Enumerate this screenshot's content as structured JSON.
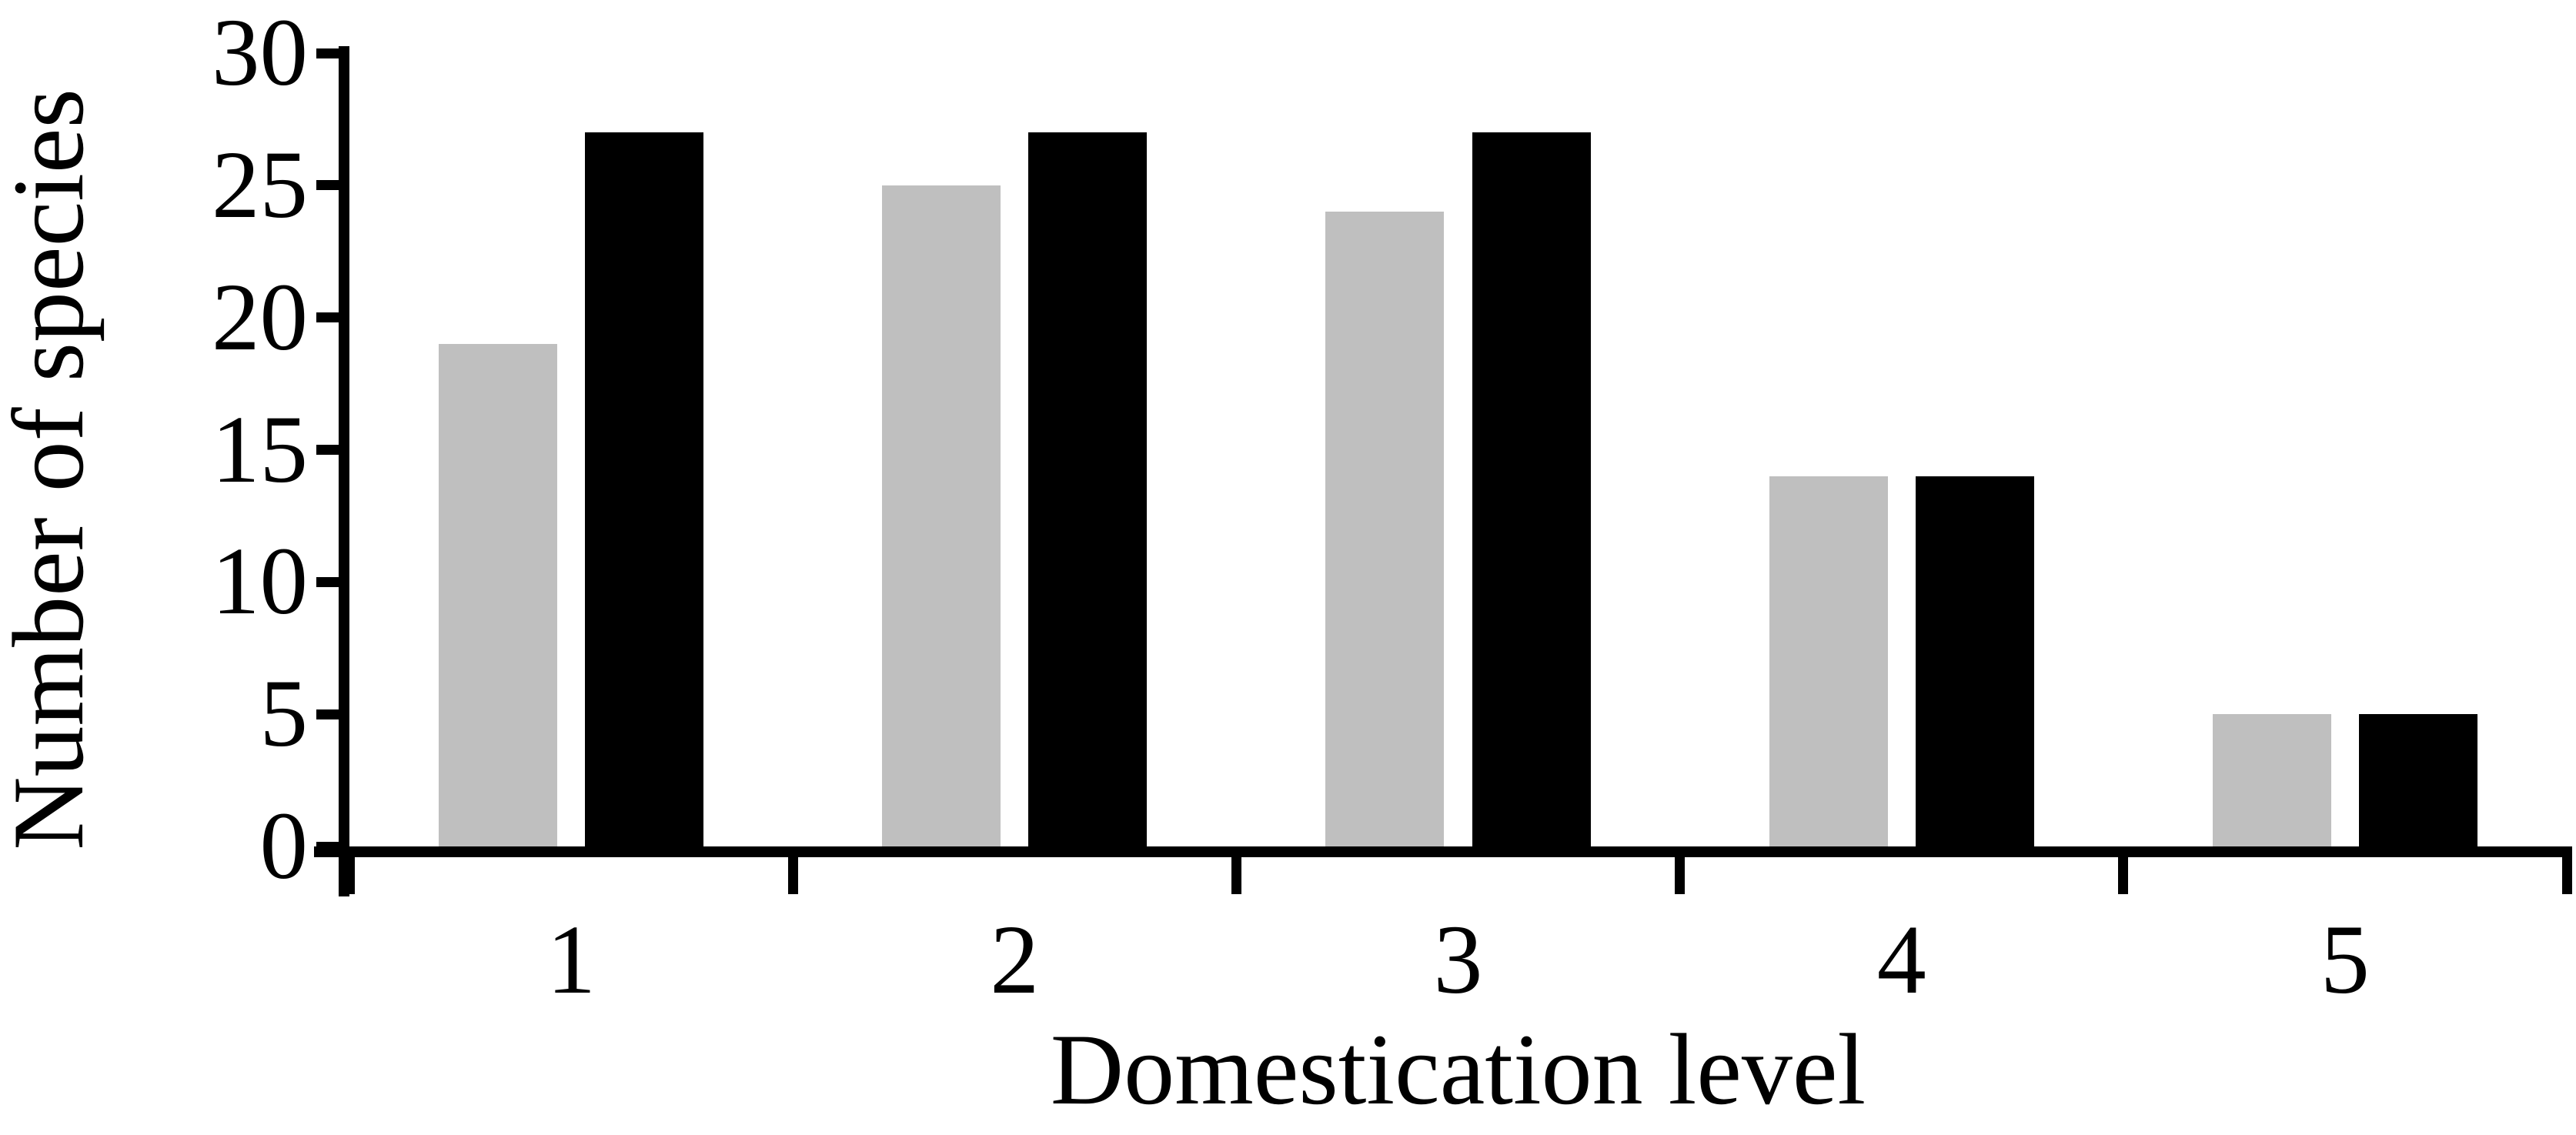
{
  "figure": {
    "background": "#ffffff",
    "axis_color": "#000000"
  },
  "chart_data": {
    "type": "bar",
    "title": "",
    "xlabel": "Domestication level",
    "ylabel": "Number of species",
    "categories": [
      "1",
      "2",
      "3",
      "4",
      "5"
    ],
    "series": [
      {
        "name": "gray",
        "color": "#bfbfbf",
        "values": [
          19,
          25,
          24,
          14,
          5
        ]
      },
      {
        "name": "black",
        "color": "#000000",
        "values": [
          27,
          27,
          27,
          14,
          5
        ]
      }
    ],
    "y_ticks": [
      0,
      5,
      10,
      15,
      20,
      25,
      30
    ],
    "ylim": [
      0,
      30
    ],
    "grid": false,
    "legend": "none"
  }
}
